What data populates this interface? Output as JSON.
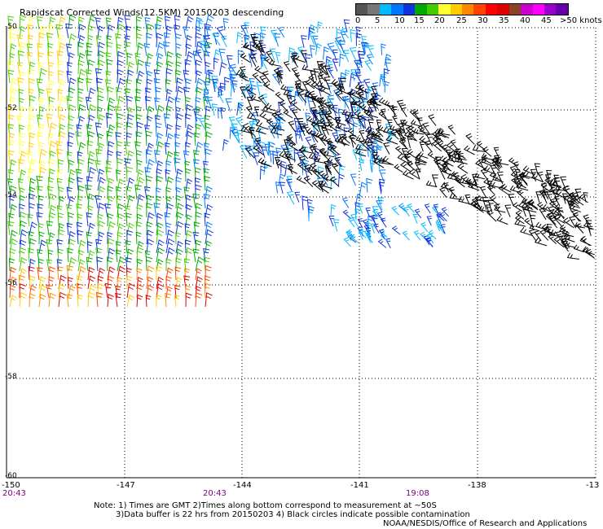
{
  "title": "Rapidscat Corrected Winds(12.5KM) 20150203 descending",
  "legend": {
    "colors": [
      "#555555",
      "#777777",
      "#00bbff",
      "#0077ff",
      "#1133dd",
      "#00aa00",
      "#44cc00",
      "#ffff33",
      "#ffcc00",
      "#ff8800",
      "#ff4400",
      "#ff0000",
      "#dd0000",
      "#884422",
      "#cc00cc",
      "#ff00ff",
      "#9900cc",
      "#6600aa"
    ],
    "labels": [
      "0",
      "5",
      "10",
      "15",
      "20",
      "25",
      "30",
      "35",
      "40",
      "45",
      ">50 knots"
    ]
  },
  "axes": {
    "lat_labels": [
      "-50",
      "-52",
      "-54",
      "-56",
      "-58",
      "-60"
    ],
    "lon_labels": [
      "-150",
      "-147",
      "-144",
      "-141",
      "-138",
      "-13"
    ],
    "times": [
      "20:43",
      "20:43",
      "19:08"
    ]
  },
  "notes": [
    "Note: 1) Times are GMT 2)Times along bottom correspond to measurement at ~50S",
    "3)Data buffer is 22 hrs from 20150203 4) Black circles indicate possible contamination",
    "NOAA/NESDIS/Office of Research and Applications"
  ]
}
